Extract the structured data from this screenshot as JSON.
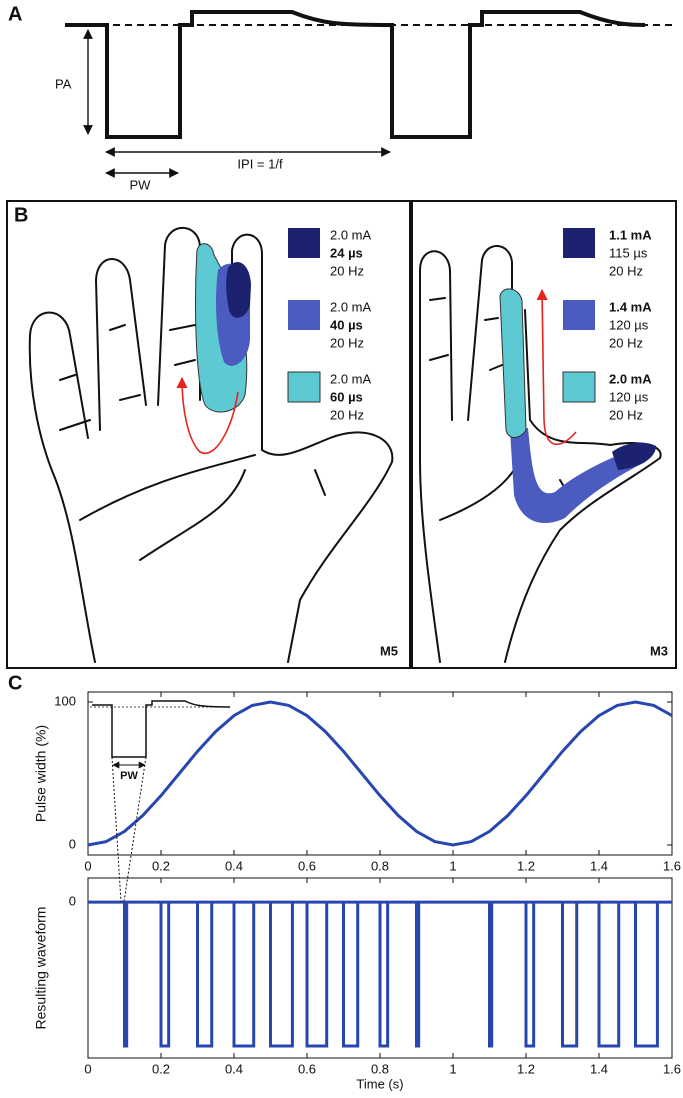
{
  "panel_labels": [
    "A",
    "B",
    "C"
  ],
  "panel_a": {
    "pa": "PA",
    "ipi": "IPI = 1/f",
    "pw": "PW"
  },
  "panel_b": {
    "hands": [
      {
        "subject": "M5",
        "legend": [
          {
            "color": "#1c2270",
            "lines": [
              {
                "text": "2.0 mA",
                "bold": false
              },
              {
                "text": "24 µs",
                "bold": true
              },
              {
                "text": "20 Hz",
                "bold": false
              }
            ]
          },
          {
            "color": "#4b5bbf",
            "lines": [
              {
                "text": "2.0 mA",
                "bold": false
              },
              {
                "text": "40 µs",
                "bold": true
              },
              {
                "text": "20 Hz",
                "bold": false
              }
            ]
          },
          {
            "color": "#5cc9d3",
            "lines": [
              {
                "text": "2.0 mA",
                "bold": false
              },
              {
                "text": "60 µs",
                "bold": true
              },
              {
                "text": "20 Hz",
                "bold": false
              }
            ]
          }
        ]
      },
      {
        "subject": "M3",
        "legend": [
          {
            "color": "#1c2270",
            "lines": [
              {
                "text": "1.1 mA",
                "bold": true
              },
              {
                "text": "115 µs",
                "bold": false
              },
              {
                "text": "20 Hz",
                "bold": false
              }
            ]
          },
          {
            "color": "#4b5bbf",
            "lines": [
              {
                "text": "1.4 mA",
                "bold": true
              },
              {
                "text": "120 µs",
                "bold": false
              },
              {
                "text": "20 Hz",
                "bold": false
              }
            ]
          },
          {
            "color": "#5cc9d3",
            "lines": [
              {
                "text": "2.0 mA",
                "bold": true
              },
              {
                "text": "120 µs",
                "bold": false
              },
              {
                "text": "20 Hz",
                "bold": false
              }
            ]
          }
        ]
      }
    ]
  },
  "panel_c_inset": {
    "label": "PW"
  },
  "chart_data": [
    {
      "type": "line",
      "ylabel": "Pulse width (%)",
      "color": "#2746b0",
      "x": [
        0,
        0.05,
        0.1,
        0.15,
        0.2,
        0.25,
        0.3,
        0.35,
        0.4,
        0.45,
        0.5,
        0.55,
        0.6,
        0.65,
        0.7,
        0.75,
        0.8,
        0.85,
        0.9,
        0.95,
        1,
        1.05,
        1.1,
        1.15,
        1.2,
        1.25,
        1.3,
        1.35,
        1.4,
        1.45,
        1.5,
        1.55,
        1.6
      ],
      "values": [
        0,
        2.4,
        9.5,
        20.6,
        34.5,
        50,
        65.5,
        79.4,
        90.5,
        97.6,
        100,
        97.6,
        90.5,
        79.4,
        65.5,
        50,
        34.5,
        20.6,
        9.5,
        2.4,
        0,
        2.4,
        9.5,
        20.6,
        34.5,
        50,
        65.5,
        79.4,
        90.5,
        97.6,
        100,
        97.6,
        90.5
      ],
      "xlim": [
        0,
        1.6
      ],
      "xticks": [
        0,
        0.2,
        0.4,
        0.6,
        0.8,
        1,
        1.2,
        1.4,
        1.6
      ],
      "ylim": [
        -7,
        107
      ],
      "yticks": [
        0,
        100
      ]
    },
    {
      "type": "pulse",
      "ylabel": "Resulting waveform",
      "xlabel": "Time (s)",
      "color": "#2746b0",
      "pulse_start": [
        0.1,
        0.2,
        0.3,
        0.4,
        0.5,
        0.6,
        0.7,
        0.8,
        0.9,
        1.1,
        1.2,
        1.3,
        1.4,
        1.5
      ],
      "pulse_width": [
        0.006,
        0.021,
        0.039,
        0.054,
        0.06,
        0.054,
        0.039,
        0.021,
        0.006,
        0.006,
        0.021,
        0.039,
        0.054,
        0.06
      ],
      "xlim": [
        0,
        1.6
      ],
      "xticks": [
        0,
        0.2,
        0.4,
        0.6,
        0.8,
        1,
        1.2,
        1.4,
        1.6
      ],
      "ylim": [
        -1.1,
        0.17
      ],
      "yticks": [
        0
      ]
    }
  ]
}
